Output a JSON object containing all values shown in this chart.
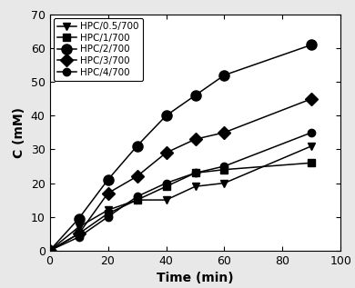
{
  "series": [
    {
      "label": "HPC/0.5/700",
      "marker": "v",
      "markersize": 6,
      "x": [
        0,
        10,
        20,
        30,
        40,
        50,
        60,
        90
      ],
      "y": [
        0,
        7,
        12,
        15,
        15,
        19,
        20,
        31
      ]
    },
    {
      "label": "HPC/1/700",
      "marker": "s",
      "markersize": 6,
      "x": [
        0,
        10,
        20,
        30,
        40,
        50,
        60,
        90
      ],
      "y": [
        0,
        5,
        11,
        15,
        19,
        23,
        24,
        26
      ]
    },
    {
      "label": "HPC/2/700",
      "marker": "o",
      "markersize": 8,
      "x": [
        0,
        10,
        20,
        30,
        40,
        50,
        60,
        90
      ],
      "y": [
        0,
        9.5,
        21,
        31,
        40,
        46,
        52,
        61
      ]
    },
    {
      "label": "HPC/3/700",
      "marker": "D",
      "markersize": 7,
      "x": [
        0,
        10,
        20,
        30,
        40,
        50,
        60,
        90
      ],
      "y": [
        0,
        5,
        17,
        22,
        29,
        33,
        35,
        45
      ]
    },
    {
      "label": "HPC/4/700",
      "marker": "o",
      "markersize": 6,
      "x": [
        0,
        10,
        20,
        30,
        40,
        50,
        60,
        90
      ],
      "y": [
        0,
        4,
        10,
        16,
        20,
        23,
        25,
        35
      ]
    }
  ],
  "xlabel": "Time (min)",
  "ylabel": "C (mM)",
  "xlim": [
    0,
    100
  ],
  "ylim": [
    0,
    70
  ],
  "xticks": [
    0,
    20,
    40,
    60,
    80,
    100
  ],
  "yticks": [
    0,
    10,
    20,
    30,
    40,
    50,
    60,
    70
  ],
  "legend_loc": "upper left",
  "figsize": [
    3.9,
    3.17
  ],
  "dpi": 100,
  "bg_color": "#e8e8e8"
}
